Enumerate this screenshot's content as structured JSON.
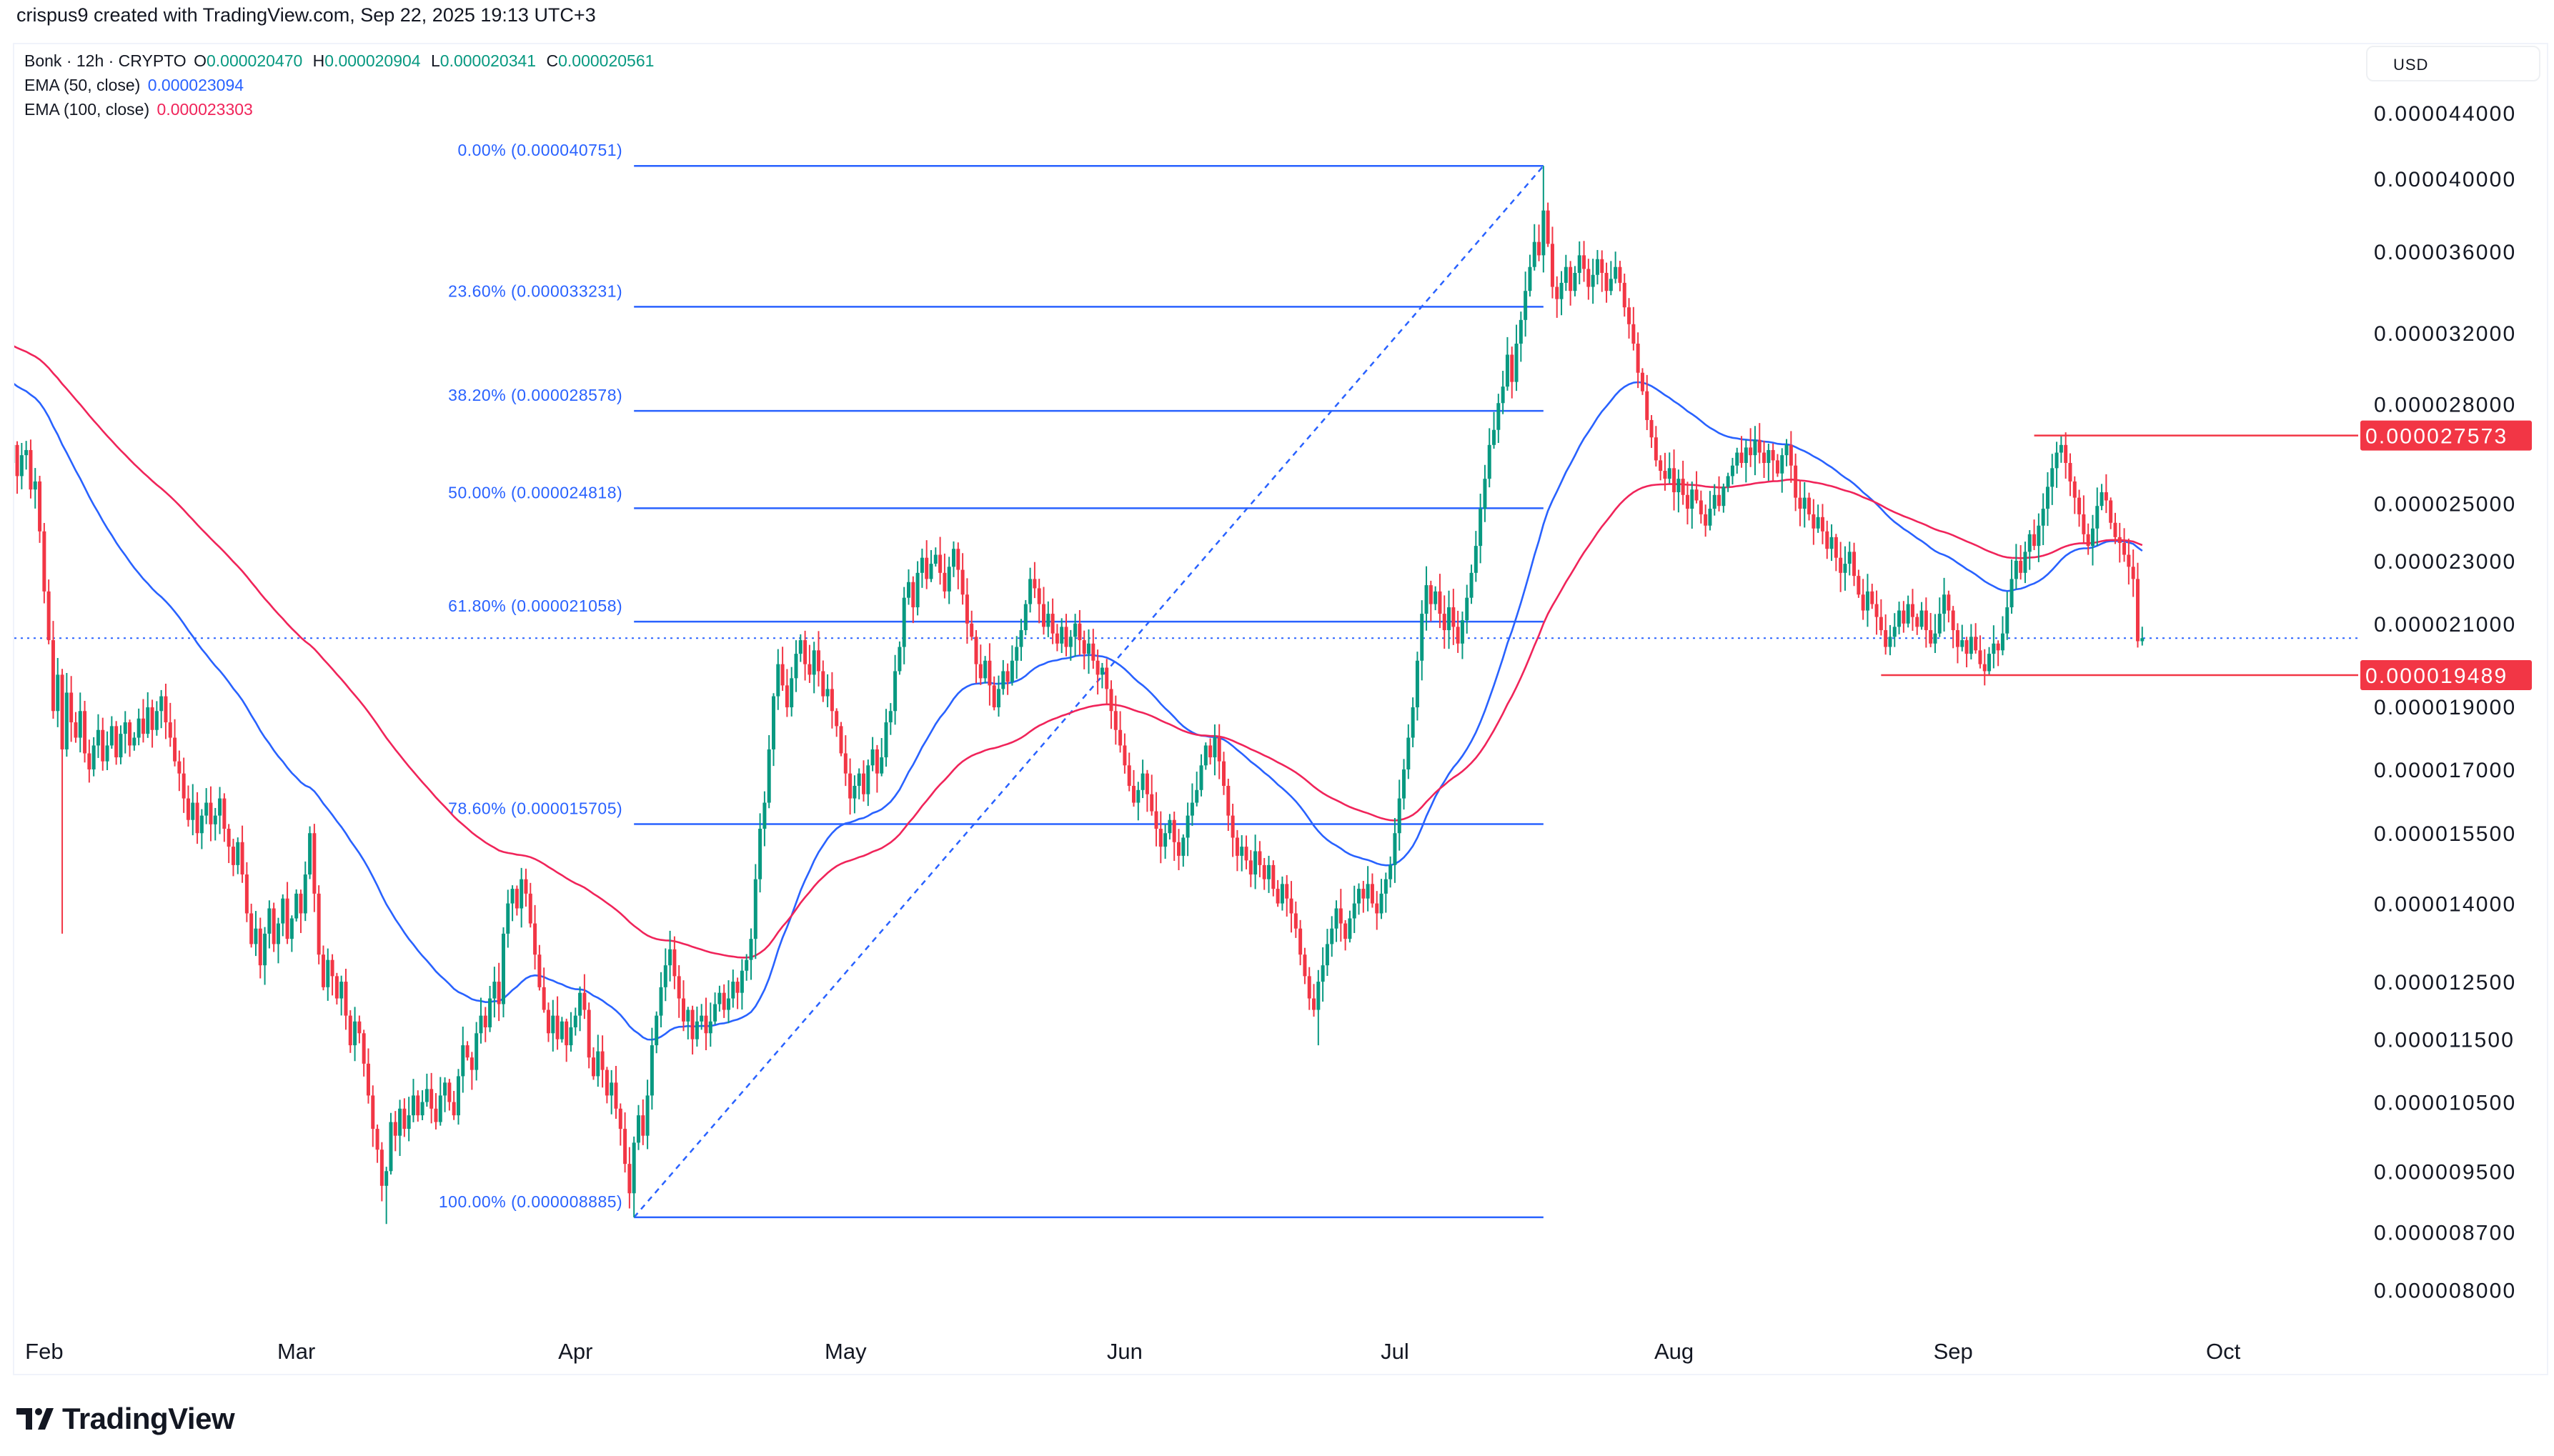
{
  "credit": "crispus9 created with TradingView.com, Sep 22, 2025 19:13 UTC+3",
  "legend": {
    "symbol": "Bonk · 12h · CRYPTO",
    "o_label": "O",
    "o": "0.000020470",
    "h_label": "H",
    "h": "0.000020904",
    "l_label": "L",
    "l": "0.000020341",
    "c_label": "C",
    "c": "0.000020561",
    "ema50_label": "EMA (50, close)",
    "ema50": "0.000023094",
    "ema100_label": "EMA (100, close)",
    "ema100": "0.000023303"
  },
  "currency_button": "USD",
  "brand": "TradingView",
  "colors": {
    "up": "#089981",
    "down": "#f23645",
    "ema50": "#2962ff",
    "ema100": "#f0245a",
    "fib": "#2962ff",
    "level": "#f23645"
  },
  "chart_data": {
    "type": "candlestick",
    "symbol": "Bonk",
    "interval": "12h",
    "price_unit": "1e-6 USD",
    "y_scale": "log",
    "ylim": [
      7.8e-06,
      4.58e-05
    ],
    "grid": false,
    "start": "2025-01-28T00:00:00Z",
    "closes": [
      26.5,
      27.2,
      26.0,
      26.8,
      27.0,
      25.5,
      25.8,
      24.0,
      22.0,
      20.5,
      18.5,
      19.5,
      17.5,
      19.0,
      18.2,
      17.8,
      18.5,
      17.4,
      17.0,
      17.6,
      18.0,
      17.2,
      17.6,
      18.1,
      17.3,
      17.9,
      18.2,
      17.6,
      17.8,
      18.3,
      17.9,
      18.6,
      18.0,
      18.5,
      18.9,
      18.2,
      17.8,
      17.2,
      16.9,
      16.3,
      15.8,
      16.2,
      15.5,
      15.9,
      16.2,
      15.7,
      15.9,
      16.3,
      15.6,
      15.2,
      14.8,
      15.3,
      14.6,
      13.8,
      13.2,
      13.5,
      12.8,
      13.4,
      13.9,
      13.2,
      13.6,
      14.1,
      13.3,
      13.7,
      14.2,
      13.8,
      14.6,
      15.5,
      14.2,
      13.0,
      12.4,
      12.9,
      12.6,
      12.2,
      12.5,
      11.9,
      11.4,
      11.8,
      11.6,
      11.1,
      10.6,
      10.1,
      9.8,
      9.3,
      9.5,
      10.2,
      10.0,
      10.4,
      10.1,
      10.3,
      10.6,
      10.3,
      10.5,
      10.7,
      10.4,
      10.2,
      10.6,
      10.8,
      10.5,
      10.3,
      10.9,
      11.4,
      11.2,
      11.0,
      11.6,
      11.9,
      11.7,
      12.2,
      12.5,
      12.1,
      13.4,
      14.0,
      14.3,
      13.9,
      14.5,
      14.2,
      13.6,
      13.0,
      12.4,
      12.0,
      11.6,
      11.9,
      11.5,
      11.8,
      11.4,
      11.7,
      11.9,
      12.3,
      12.0,
      11.2,
      10.9,
      11.3,
      11.0,
      10.6,
      10.8,
      10.4,
      10.1,
      9.6,
      9.2,
      9.9,
      10.3,
      10.0,
      10.6,
      11.4,
      11.9,
      12.4,
      12.8,
      13.1,
      12.6,
      12.2,
      11.8,
      12.0,
      11.5,
      11.8,
      11.9,
      11.6,
      11.8,
      12.1,
      12.3,
      12.0,
      12.2,
      12.5,
      12.3,
      12.7,
      12.9,
      13.3,
      14.5,
      15.6,
      16.2,
      17.5,
      18.9,
      19.8,
      19.2,
      18.6,
      19.4,
      20.1,
      20.5,
      19.8,
      19.5,
      20.2,
      19.6,
      18.9,
      19.1,
      18.5,
      18.1,
      17.4,
      16.9,
      16.3,
      16.6,
      16.9,
      16.4,
      17.1,
      17.5,
      16.9,
      17.3,
      18.2,
      18.5,
      19.6,
      20.3,
      21.8,
      22.3,
      21.5,
      22.6,
      23.1,
      22.4,
      22.9,
      23.2,
      22.6,
      22.0,
      22.8,
      23.4,
      22.7,
      21.9,
      21.0,
      20.6,
      19.8,
      19.4,
      19.9,
      19.2,
      18.6,
      19.1,
      19.6,
      19.3,
      19.9,
      20.3,
      20.8,
      21.6,
      22.4,
      22.1,
      21.6,
      20.9,
      21.3,
      20.7,
      20.4,
      20.9,
      20.3,
      20.6,
      21.0,
      20.5,
      20.1,
      20.4,
      19.9,
      19.5,
      19.7,
      19.1,
      18.5,
      18.0,
      17.6,
      17.1,
      16.6,
      16.2,
      16.5,
      16.9,
      16.4,
      16.0,
      15.6,
      15.2,
      15.5,
      15.8,
      15.3,
      15.0,
      15.4,
      15.9,
      16.2,
      16.5,
      17.1,
      17.6,
      17.3,
      17.8,
      17.2,
      16.6,
      15.9,
      15.4,
      15.0,
      15.2,
      14.9,
      14.6,
      15.1,
      14.8,
      14.5,
      14.8,
      14.3,
      14.0,
      14.4,
      14.1,
      13.8,
      13.5,
      13.0,
      12.6,
      12.2,
      12.0,
      12.5,
      12.8,
      13.2,
      13.5,
      13.9,
      13.6,
      13.3,
      13.7,
      14.0,
      14.3,
      14.1,
      14.4,
      14.0,
      13.8,
      14.2,
      14.5,
      14.8,
      15.5,
      16.3,
      17.0,
      17.8,
      18.6,
      19.9,
      21.3,
      22.2,
      21.6,
      22.0,
      21.3,
      20.8,
      21.5,
      20.9,
      20.4,
      21.1,
      21.8,
      22.6,
      23.5,
      24.8,
      25.9,
      27.2,
      27.8,
      28.9,
      29.6,
      31.0,
      29.8,
      31.5,
      32.6,
      34.0,
      35.2,
      36.5,
      35.8,
      38.2,
      36.4,
      34.2,
      33.6,
      34.4,
      35.2,
      34.0,
      34.9,
      35.8,
      35.1,
      34.2,
      34.8,
      35.6,
      34.9,
      34.0,
      34.6,
      35.2,
      34.4,
      33.2,
      32.4,
      31.5,
      30.2,
      29.4,
      28.2,
      27.5,
      26.6,
      26.2,
      25.9,
      26.3,
      25.4,
      25.9,
      25.3,
      24.8,
      25.5,
      25.1,
      24.6,
      24.2,
      24.8,
      25.3,
      24.9,
      25.6,
      26.0,
      26.4,
      26.9,
      26.5,
      27.1,
      26.8,
      27.4,
      26.9,
      26.5,
      27.0,
      26.6,
      26.1,
      26.8,
      27.2,
      26.4,
      25.2,
      24.8,
      25.2,
      24.6,
      24.1,
      24.5,
      24.0,
      23.4,
      23.8,
      23.1,
      22.6,
      22.9,
      23.3,
      22.5,
      21.9,
      21.4,
      22.0,
      21.6,
      21.2,
      20.8,
      20.3,
      20.6,
      20.9,
      21.4,
      21.0,
      21.6,
      21.2,
      20.9,
      21.4,
      20.8,
      20.4,
      20.7,
      21.3,
      21.9,
      21.4,
      20.8,
      20.3,
      20.5,
      20.1,
      20.6,
      20.2,
      19.8,
      19.6,
      20.1,
      20.4,
      20.2,
      20.7,
      21.5,
      22.4,
      23.0,
      22.6,
      23.3,
      23.9,
      23.5,
      24.2,
      24.8,
      25.6,
      26.3,
      26.9,
      27.2,
      26.5,
      25.8,
      25.2,
      24.6,
      23.9,
      23.5,
      24.1,
      24.9,
      25.4,
      25.1,
      24.3,
      23.8,
      23.6,
      23.2,
      22.8,
      22.4,
      20.47,
      20.56
    ],
    "last_candle": {
      "open": 20.47,
      "high": 20.904,
      "low": 20.341,
      "close": 20.561
    },
    "wick_extremes": [
      {
        "t": "2025-02-03T00:00:00Z",
        "low": 13.4
      },
      {
        "t": "2025-03-11T00:00:00Z",
        "low": 8.8
      },
      {
        "t": "2025-04-07T12:00:00Z",
        "low": 8.885
      },
      {
        "t": "2025-06-22T12:00:00Z",
        "low": 11.4
      },
      {
        "t": "2025-07-17T12:00:00Z",
        "high": 40.751
      },
      {
        "t": "2025-09-13T00:00:00Z",
        "high": 27.573
      },
      {
        "t": "2025-09-04T12:00:00Z",
        "low": 19.2
      }
    ],
    "indicators": [
      {
        "name": "EMA (50, close)",
        "period": 50,
        "color": "#2962ff",
        "last": 23.094
      },
      {
        "name": "EMA (100, close)",
        "period": 100,
        "color": "#f0245a",
        "last": 23.303
      }
    ],
    "y_ticks": [
      "0.000044000",
      "0.000040000",
      "0.000036000",
      "0.000032000",
      "0.000028000",
      "0.000025000",
      "0.000023000",
      "0.000021000",
      "0.000019000",
      "0.000017000",
      "0.000015500",
      "0.000014000",
      "0.000012500",
      "0.000011500",
      "0.000010500",
      "0.000009500",
      "0.000008700",
      "0.000008000"
    ],
    "x_ticks": [
      {
        "label": "Feb",
        "date": "2025-02-01"
      },
      {
        "label": "Mar",
        "date": "2025-03-01"
      },
      {
        "label": "Apr",
        "date": "2025-04-01"
      },
      {
        "label": "May",
        "date": "2025-05-01"
      },
      {
        "label": "Jun",
        "date": "2025-06-01"
      },
      {
        "label": "Jul",
        "date": "2025-07-01"
      },
      {
        "label": "Aug",
        "date": "2025-08-01"
      },
      {
        "label": "Sep",
        "date": "2025-09-01"
      },
      {
        "label": "Oct",
        "date": "2025-10-01"
      }
    ],
    "fibonacci": {
      "from": {
        "t": "2025-04-07T12:00:00Z",
        "price": 8.885
      },
      "to": {
        "t": "2025-07-17T12:00:00Z",
        "price": 40.751
      },
      "levels": [
        {
          "label": "0.00% (0.000040751)",
          "price": 40.751
        },
        {
          "label": "23.60% (0.000033231)",
          "price": 33.231
        },
        {
          "label": "38.20% (0.000028578)",
          "price": 28.578
        },
        {
          "label": "50.00% (0.000024818)",
          "price": 24.818
        },
        {
          "label": "61.80% (0.000021058)",
          "price": 21.058
        },
        {
          "label": "78.60% (0.000015705)",
          "price": 15.705
        },
        {
          "label": "100.00% (0.000008885)",
          "price": 8.885
        }
      ]
    },
    "horizontal_levels": [
      {
        "label": "0.000027573",
        "price": 27.573,
        "from": "2025-09-10T00:00:00Z"
      },
      {
        "label": "0.000019489",
        "price": 19.489,
        "from": "2025-08-24T00:00:00Z"
      }
    ],
    "last_price_line": 20.561
  }
}
